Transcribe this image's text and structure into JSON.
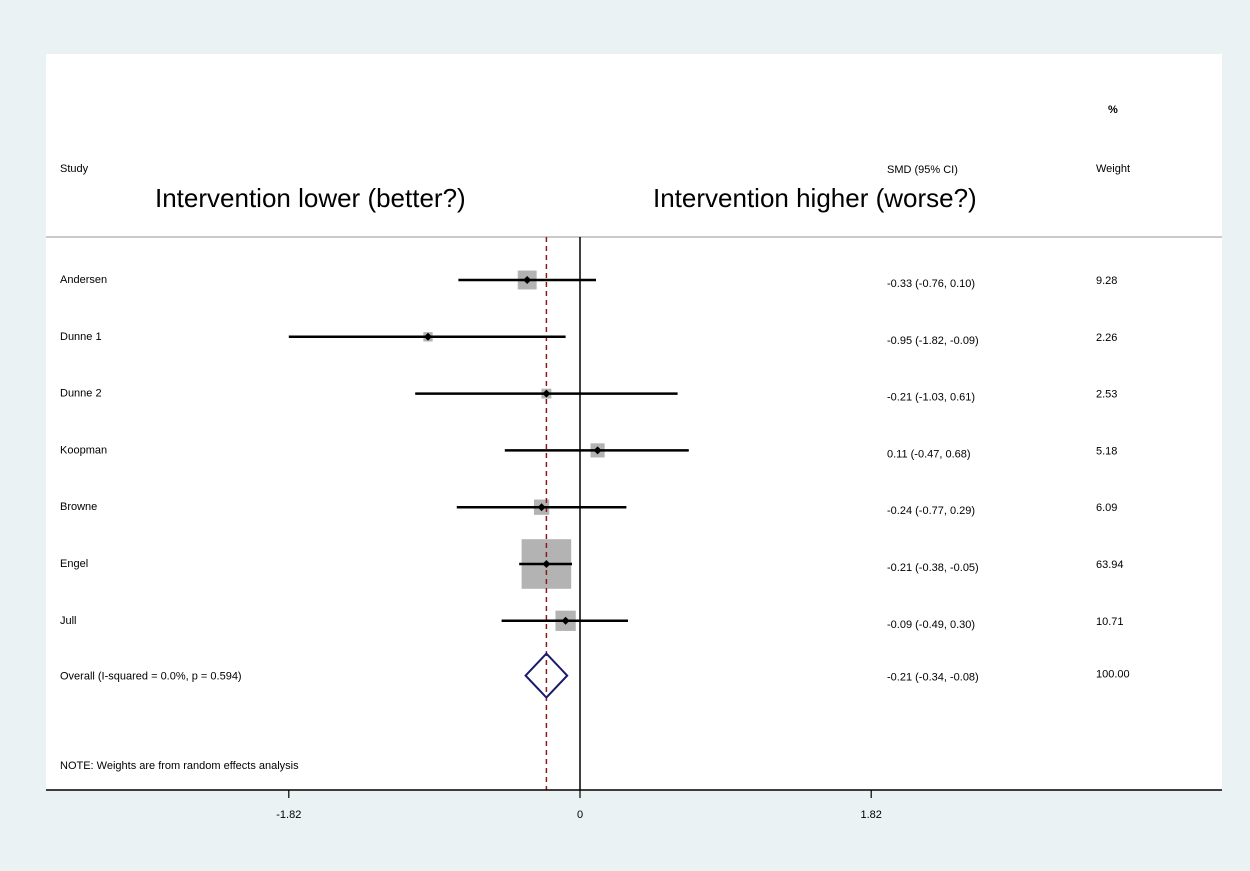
{
  "chart_data": {
    "type": "forest",
    "headers": {
      "study": "Study",
      "effect": "SMD (95% CI)",
      "weight_pct": "%",
      "weight": "Weight"
    },
    "direction_labels": {
      "left": "Intervention lower (better?)",
      "right": "Intervention higher (worse?)"
    },
    "studies": [
      {
        "name": "Andersen",
        "est": -0.33,
        "lo": -0.76,
        "hi": 0.1,
        "ci_text": "-0.33 (-0.76, 0.10)",
        "weight": 9.28,
        "weight_text": "9.28"
      },
      {
        "name": "Dunne 1",
        "est": -0.95,
        "lo": -1.82,
        "hi": -0.09,
        "ci_text": "-0.95 (-1.82, -0.09)",
        "weight": 2.26,
        "weight_text": "2.26"
      },
      {
        "name": "Dunne 2",
        "est": -0.21,
        "lo": -1.03,
        "hi": 0.61,
        "ci_text": "-0.21 (-1.03, 0.61)",
        "weight": 2.53,
        "weight_text": "2.53"
      },
      {
        "name": "Koopman",
        "est": 0.11,
        "lo": -0.47,
        "hi": 0.68,
        "ci_text": "0.11 (-0.47, 0.68)",
        "weight": 5.18,
        "weight_text": "5.18"
      },
      {
        "name": "Browne",
        "est": -0.24,
        "lo": -0.77,
        "hi": 0.29,
        "ci_text": "-0.24 (-0.77, 0.29)",
        "weight": 6.09,
        "weight_text": "6.09"
      },
      {
        "name": "Engel",
        "est": -0.21,
        "lo": -0.38,
        "hi": -0.05,
        "ci_text": "-0.21 (-0.38, -0.05)",
        "weight": 63.94,
        "weight_text": "63.94"
      },
      {
        "name": "Jull",
        "est": -0.09,
        "lo": -0.49,
        "hi": 0.3,
        "ci_text": "-0.09 (-0.49, 0.30)",
        "weight": 10.71,
        "weight_text": "10.71"
      }
    ],
    "overall": {
      "label": "Overall  (I-squared = 0.0%, p = 0.594)",
      "est": -0.21,
      "lo": -0.34,
      "hi": -0.08,
      "ci_text": "-0.21 (-0.34, -0.08)",
      "weight_text": "100.00"
    },
    "note": "NOTE: Weights are from random effects analysis",
    "x_ticks": [
      {
        "value": -1.82,
        "label": "-1.82"
      },
      {
        "value": 0,
        "label": "0"
      },
      {
        "value": 1.82,
        "label": "1.82"
      }
    ],
    "null_line": 0,
    "reference_line": -0.21,
    "colors": {
      "page_bg": "#eaf2f3",
      "panel_bg": "#ffffff",
      "box": "#b3b3b3",
      "overall_diamond": "#1a1a6e",
      "reference_line": "#8b1a1a"
    }
  }
}
